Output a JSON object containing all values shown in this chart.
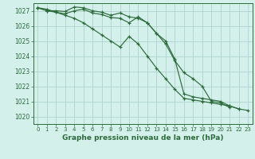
{
  "title": "Graphe pression niveau de la mer (hPa)",
  "background_color": "#d4f0eb",
  "grid_color": "#aed4cc",
  "line_color": "#2d6b3c",
  "text_color": "#2d6b3c",
  "xlim": [
    -0.5,
    23.5
  ],
  "ylim": [
    1019.5,
    1027.5
  ],
  "yticks": [
    1020,
    1021,
    1022,
    1023,
    1024,
    1025,
    1026,
    1027
  ],
  "xticks": [
    0,
    1,
    2,
    3,
    4,
    5,
    6,
    7,
    8,
    9,
    10,
    11,
    12,
    13,
    14,
    15,
    16,
    17,
    18,
    19,
    20,
    21,
    22,
    23
  ],
  "series": [
    [
      1027.2,
      1027.1,
      1026.9,
      1026.7,
      1026.5,
      1026.2,
      1025.8,
      1025.4,
      1025.0,
      1024.6,
      1025.3,
      1024.8,
      1024.0,
      1023.2,
      1022.5,
      1021.8,
      1021.2,
      1021.1,
      1021.0,
      1020.9,
      1020.8,
      1020.7,
      1020.5,
      1020.4
    ],
    [
      1027.2,
      1027.0,
      1027.0,
      1026.95,
      1027.25,
      1027.2,
      1027.0,
      1026.9,
      1026.7,
      1026.85,
      1026.6,
      1026.5,
      1026.2,
      1025.5,
      1024.8,
      1023.7,
      1022.9,
      1022.5,
      1022.0,
      1021.0,
      1020.9,
      1020.6,
      null,
      null
    ],
    [
      1027.2,
      1027.0,
      1026.9,
      1026.8,
      1027.0,
      1027.1,
      1026.85,
      1026.75,
      1026.55,
      1026.5,
      1026.2,
      1026.6,
      1026.2,
      1025.5,
      1025.0,
      1023.8,
      1021.5,
      1021.3,
      1021.2,
      1021.1,
      1021.0,
      1020.7,
      1020.5,
      null
    ]
  ]
}
